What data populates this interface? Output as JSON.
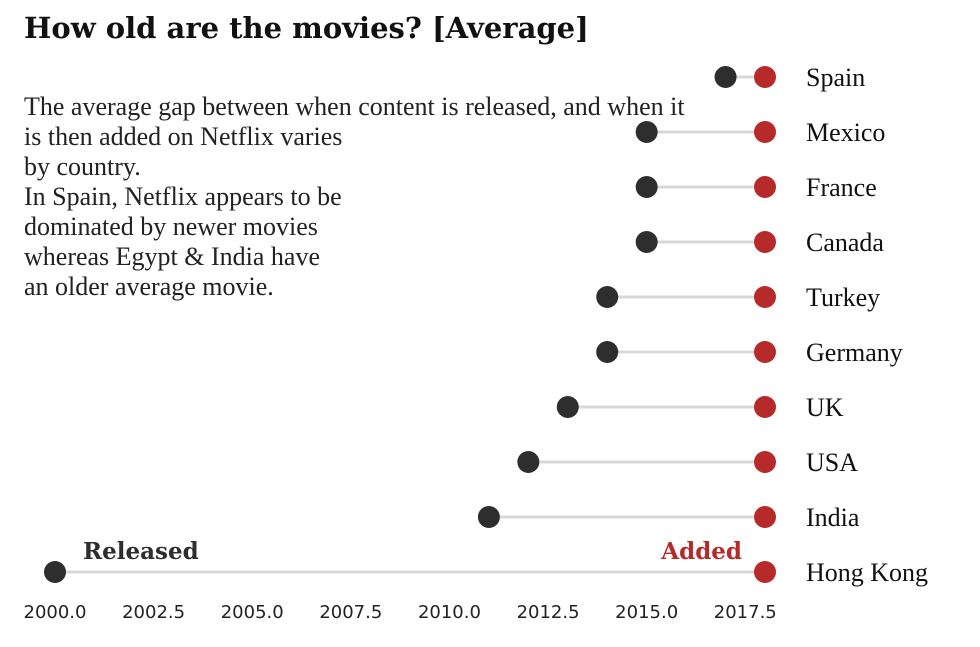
{
  "chart_data": {
    "type": "dumbbell",
    "title": "How old are the movies? [Average]",
    "description": [
      "The average gap between when content is released, and when it",
      "is then added on Netflix varies",
      "by country.",
      "",
      "In Spain, Netflix appears to be",
      "dominated by newer movies",
      "whereas Egypt & India have",
      "an older average movie."
    ],
    "categories": [
      "Spain",
      "Mexico",
      "France",
      "Canada",
      "Turkey",
      "Germany",
      "UK",
      "USA",
      "India",
      "Hong Kong"
    ],
    "series": [
      {
        "name": "Released",
        "values": [
          2017.0,
          2015.0,
          2015.0,
          2015.0,
          2014.0,
          2014.0,
          2013.0,
          2012.0,
          2011.0,
          2000.0
        ]
      },
      {
        "name": "Added",
        "values": [
          2018.0,
          2018.0,
          2018.0,
          2018.0,
          2018.0,
          2018.0,
          2018.0,
          2018.0,
          2018.0,
          2018.0
        ]
      }
    ],
    "xticks": [
      "2000.0",
      "2002.5",
      "2005.0",
      "2007.5",
      "2010.0",
      "2012.5",
      "2015.0",
      "2017.5"
    ],
    "xlim": [
      2000,
      2018
    ],
    "colors": {
      "released": "#2e2e2e",
      "added": "#b72a2a",
      "connector": "#d8d8d8"
    },
    "grid": false
  }
}
